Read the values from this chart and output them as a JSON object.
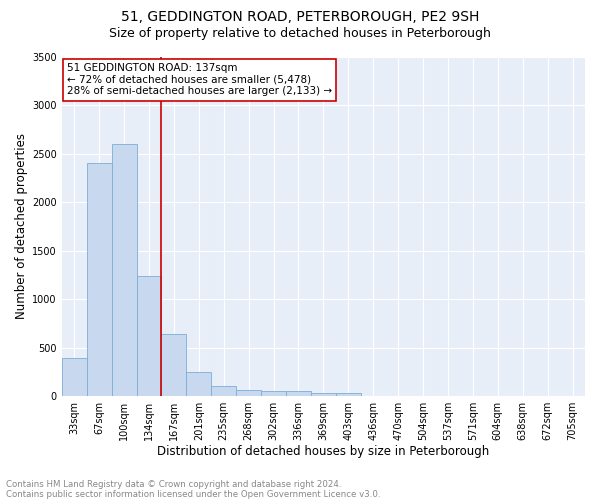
{
  "title": "51, GEDDINGTON ROAD, PETERBOROUGH, PE2 9SH",
  "subtitle": "Size of property relative to detached houses in Peterborough",
  "xlabel": "Distribution of detached houses by size in Peterborough",
  "ylabel": "Number of detached properties",
  "footer_line1": "Contains HM Land Registry data © Crown copyright and database right 2024.",
  "footer_line2": "Contains public sector information licensed under the Open Government Licence v3.0.",
  "categories": [
    "33sqm",
    "67sqm",
    "100sqm",
    "134sqm",
    "167sqm",
    "201sqm",
    "235sqm",
    "268sqm",
    "302sqm",
    "336sqm",
    "369sqm",
    "403sqm",
    "436sqm",
    "470sqm",
    "504sqm",
    "537sqm",
    "571sqm",
    "604sqm",
    "638sqm",
    "672sqm",
    "705sqm"
  ],
  "values": [
    390,
    2400,
    2600,
    1240,
    640,
    250,
    100,
    60,
    55,
    50,
    35,
    35,
    0,
    0,
    0,
    0,
    0,
    0,
    0,
    0,
    0
  ],
  "bar_color": "#c8d8ef",
  "bar_edge_color": "#7bafd4",
  "vline_x": 3.5,
  "vline_color": "#cc0000",
  "annotation_text": "51 GEDDINGTON ROAD: 137sqm\n← 72% of detached houses are smaller (5,478)\n28% of semi-detached houses are larger (2,133) →",
  "annotation_box_color": "#ffffff",
  "annotation_box_edge": "#cc0000",
  "ylim": [
    0,
    3500
  ],
  "yticks": [
    0,
    500,
    1000,
    1500,
    2000,
    2500,
    3000,
    3500
  ],
  "plot_bg_color": "#e8eef8",
  "grid_color": "#ffffff",
  "title_fontsize": 10,
  "subtitle_fontsize": 9,
  "axis_label_fontsize": 8.5,
  "tick_fontsize": 7,
  "annotation_fontsize": 7.5,
  "footer_fontsize": 6.2
}
